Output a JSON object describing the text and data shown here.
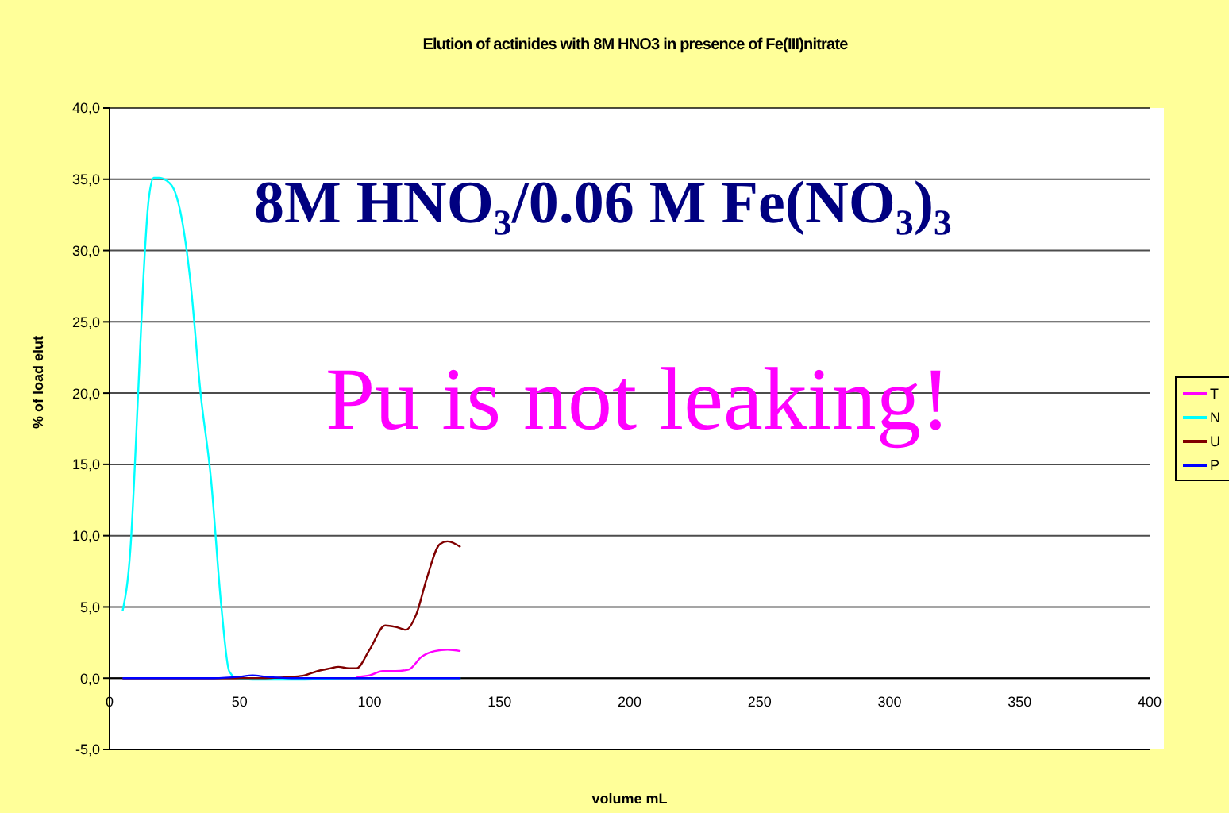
{
  "chart_data": {
    "type": "line",
    "title": "Elution of actinides with 8M HNO3 in presence of Fe(III)nitrate",
    "xlabel": "volume mL",
    "ylabel": "% of load elut",
    "annotations": [
      "8M HNO₃/0.06 M Fe(NO₃)₃",
      "Pu is not leaking!"
    ],
    "series": [
      {
        "name": "T",
        "color": "#ff00ff",
        "x": [
          95,
          100,
          105,
          110,
          115,
          120,
          125,
          130,
          135
        ],
        "values": [
          0.1,
          0.2,
          0.5,
          0.5,
          0.6,
          1.5,
          1.9,
          2.0,
          1.9
        ]
      },
      {
        "name": "N",
        "color": "#00ffff",
        "x": [
          5,
          8,
          11,
          13,
          15,
          17,
          19,
          22,
          25,
          28,
          31,
          35,
          39,
          43,
          46,
          49,
          55,
          65,
          75,
          90,
          110,
          135
        ],
        "values": [
          4.7,
          9,
          20,
          28,
          33.5,
          35.1,
          35.1,
          34.9,
          34.2,
          32,
          28,
          20,
          14,
          5,
          0.5,
          0,
          -0.1,
          -0.1,
          -0.1,
          0,
          0,
          0
        ]
      },
      {
        "name": "U",
        "color": "#800000",
        "x": [
          5,
          20,
          40,
          60,
          70,
          75,
          80,
          85,
          88,
          92,
          95,
          100,
          106,
          110,
          114,
          118,
          122,
          127,
          130,
          135
        ],
        "values": [
          0,
          0,
          0,
          0,
          0.1,
          0.2,
          0.5,
          0.7,
          0.8,
          0.7,
          0.7,
          2,
          3.7,
          3.6,
          3.4,
          4.5,
          7,
          9.4,
          9.6,
          9.2
        ]
      },
      {
        "name": "P",
        "color": "#0000ff",
        "x": [
          5,
          20,
          40,
          50,
          55,
          60,
          70,
          90,
          110,
          135
        ],
        "values": [
          0,
          0,
          0,
          0.1,
          0.2,
          0.1,
          0,
          0,
          0,
          0
        ]
      }
    ],
    "xlim": [
      0,
      400
    ],
    "xticks": [
      0,
      50,
      100,
      150,
      200,
      250,
      300,
      350,
      400
    ],
    "ylim": [
      -5,
      40
    ],
    "yticks": [
      {
        "value": -5,
        "label": "-5,0"
      },
      {
        "value": 0,
        "label": "0,0"
      },
      {
        "value": 5,
        "label": "5,0"
      },
      {
        "value": 10,
        "label": "10,0"
      },
      {
        "value": 15,
        "label": "15,0"
      },
      {
        "value": 20,
        "label": "20,0"
      },
      {
        "value": 25,
        "label": "25,0"
      },
      {
        "value": 30,
        "label": "30,0"
      },
      {
        "value": 35,
        "label": "35,0"
      },
      {
        "value": 40,
        "label": "40,0"
      }
    ],
    "grid": "y",
    "legend": "right",
    "marker": "none",
    "line_style": "solid"
  }
}
